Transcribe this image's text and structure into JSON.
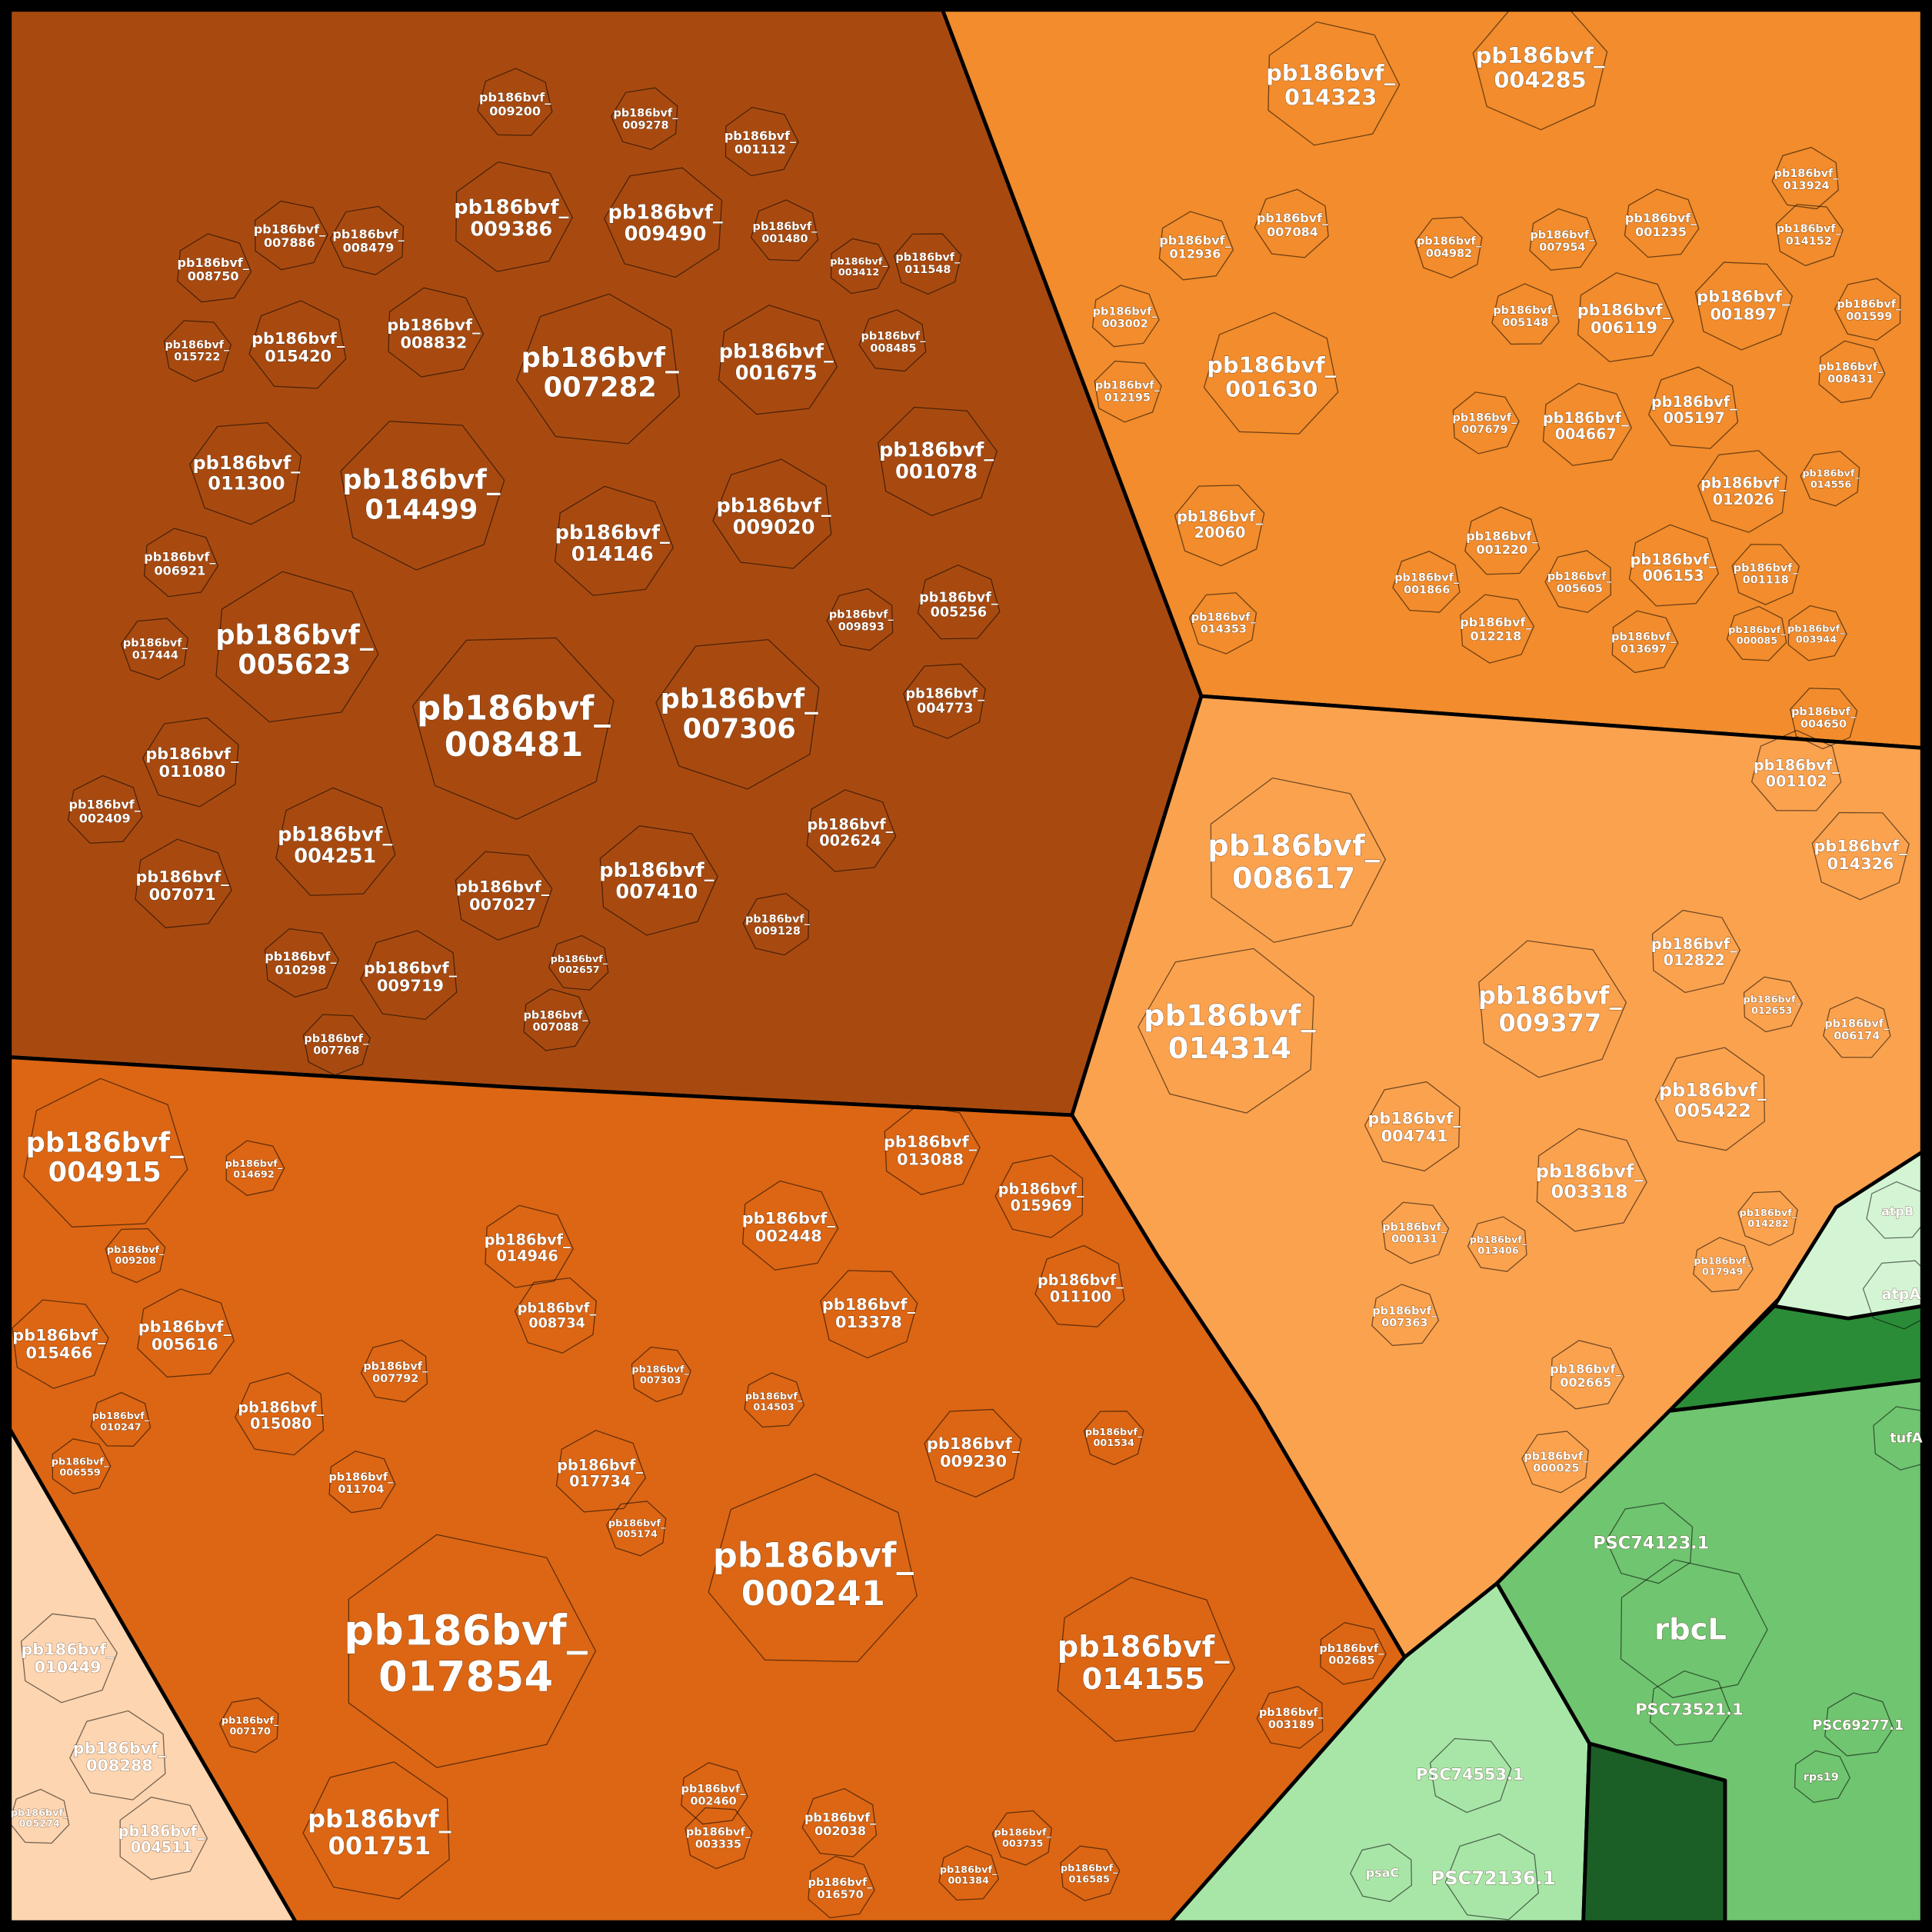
{
  "treemap": {
    "cells": [
      {
        "label": [
          "pb186bvf_",
          "017854"
        ]
      },
      {
        "label": [
          "pb186bvf_",
          "008481"
        ]
      },
      {
        "label": [
          "pb186bvf_",
          "000241"
        ]
      },
      {
        "label": [
          "pb186bvf_",
          "008617"
        ]
      },
      {
        "label": [
          "pb186bvf_",
          "014314"
        ]
      },
      {
        "label": [
          "pb186bvf_",
          "014155"
        ]
      },
      {
        "label": [
          "pb186bvf_",
          "014499"
        ]
      },
      {
        "label": [
          "pb186bvf_",
          "007282"
        ]
      },
      {
        "label": [
          "pb186bvf_",
          "005623"
        ]
      },
      {
        "label": [
          "pb186bvf_",
          "007306"
        ]
      },
      {
        "label": [
          "pb186bvf_",
          "004915"
        ]
      },
      {
        "label": [
          "pb186bvf_",
          "009377"
        ]
      },
      {
        "label": [
          "pb186bvf_",
          "001751"
        ]
      },
      {
        "label": [
          "pb186bvf_",
          "014323"
        ]
      },
      {
        "label": [
          "pb186bvf_",
          "004285"
        ]
      },
      {
        "label": [
          "pb186bvf_",
          "001630"
        ]
      },
      {
        "label": [
          "pb186bvf_",
          "009386"
        ]
      },
      {
        "label": [
          "pb186bvf_",
          "009490"
        ]
      },
      {
        "label": [
          "pb186bvf_",
          "001675"
        ]
      },
      {
        "label": [
          "pb186bvf_",
          "001078"
        ]
      },
      {
        "label": [
          "pb186bvf_",
          "009020"
        ]
      },
      {
        "label": [
          "pb186bvf_",
          "014146"
        ]
      },
      {
        "label": [
          "pb186bvf_",
          "011300"
        ]
      },
      {
        "label": [
          "pb186bvf_",
          "004251"
        ]
      },
      {
        "label": [
          "pb186bvf_",
          "007410"
        ]
      },
      {
        "label": [
          "pb186bvf_",
          "005422"
        ]
      },
      {
        "label": [
          "pb186bvf_",
          "003318"
        ]
      },
      {
        "label": [
          "pb186bvf_",
          "014326"
        ]
      },
      {
        "label": [
          "pb186bvf_",
          "015420"
        ]
      },
      {
        "label": [
          "pb186bvf_",
          "008832"
        ]
      },
      {
        "label": [
          "pb186bvf_",
          "011080"
        ]
      },
      {
        "label": [
          "pb186bvf_",
          "007071"
        ]
      },
      {
        "label": [
          "pb186bvf_",
          "007027"
        ]
      },
      {
        "label": [
          "pb186bvf_",
          "009719"
        ]
      },
      {
        "label": [
          "pb186bvf_",
          "002624"
        ]
      },
      {
        "label": [
          "pb186bvf_",
          "004773"
        ]
      },
      {
        "label": [
          "pb186bvf_",
          "005256"
        ]
      },
      {
        "label": [
          "pb186bvf_",
          "013088"
        ]
      },
      {
        "label": [
          "pb186bvf_",
          "015969"
        ]
      },
      {
        "label": [
          "pb186bvf_",
          "002448"
        ]
      },
      {
        "label": [
          "pb186bvf_",
          "013378"
        ]
      },
      {
        "label": [
          "pb186bvf_",
          "011100"
        ]
      },
      {
        "label": [
          "pb186bvf_",
          "014946"
        ]
      },
      {
        "label": [
          "pb186bvf_",
          "008734"
        ]
      },
      {
        "label": [
          "pb186bvf_",
          "005616"
        ]
      },
      {
        "label": [
          "pb186bvf_",
          "015466"
        ]
      },
      {
        "label": [
          "pb186bvf_",
          "015080"
        ]
      },
      {
        "label": [
          "pb186bvf_",
          "017734"
        ]
      },
      {
        "label": [
          "pb186bvf_",
          "009230"
        ]
      },
      {
        "label": [
          "pb186bvf_",
          "001102"
        ]
      },
      {
        "label": [
          "pb186bvf_",
          "012822"
        ]
      },
      {
        "label": [
          "pb186bvf_",
          "004741"
        ]
      },
      {
        "label": [
          "pb186bvf_",
          "006119"
        ]
      },
      {
        "label": [
          "pb186bvf_",
          "001897"
        ]
      },
      {
        "label": [
          "pb186bvf_",
          "005197"
        ]
      },
      {
        "label": [
          "pb186bvf_",
          "004667"
        ]
      },
      {
        "label": [
          "pb186bvf_",
          "012026"
        ]
      },
      {
        "label": [
          "pb186bvf_",
          "006153"
        ]
      },
      {
        "label": [
          "pb186bvf_",
          "010449"
        ]
      },
      {
        "label": [
          "pb186bvf_",
          "008288"
        ]
      },
      {
        "label": [
          "pb186bvf_",
          "004511"
        ]
      },
      {
        "label": [
          "pb186bvf_",
          "20060"
        ]
      },
      {
        "label": [
          "pb186bvf_",
          "009200"
        ]
      },
      {
        "label": [
          "pb186bvf_",
          "007886"
        ]
      },
      {
        "label": [
          "pb186bvf_",
          "008479"
        ]
      },
      {
        "label": [
          "pb186bvf_",
          "008750"
        ]
      },
      {
        "label": [
          "pb186bvf_",
          "015722"
        ]
      },
      {
        "label": [
          "pb186bvf_",
          "008485"
        ]
      },
      {
        "label": [
          "pb186bvf_",
          "006921"
        ]
      },
      {
        "label": [
          "pb186bvf_",
          "017444"
        ]
      },
      {
        "label": [
          "pb186bvf_",
          "002409"
        ]
      },
      {
        "label": [
          "pb186bvf_",
          "010298"
        ]
      },
      {
        "label": [
          "pb186bvf_",
          "009893"
        ]
      },
      {
        "label": [
          "pb186bvf_",
          "003412"
        ]
      },
      {
        "label": [
          "pb186bvf_",
          "011548"
        ]
      },
      {
        "label": [
          "pb186bvf_",
          "001480"
        ]
      },
      {
        "label": [
          "pb186bvf_",
          "001112"
        ]
      },
      {
        "label": [
          "pb186bvf_",
          "009278"
        ]
      },
      {
        "label": [
          "pb186bvf_",
          "003002"
        ]
      },
      {
        "label": [
          "pb186bvf_",
          "012195"
        ]
      },
      {
        "label": [
          "pb186bvf_",
          "007084"
        ]
      },
      {
        "label": [
          "pb186bvf_",
          "012936"
        ]
      },
      {
        "label": [
          "pb186bvf_",
          "014353"
        ]
      },
      {
        "label": [
          "pb186bvf_",
          "001220"
        ]
      },
      {
        "label": [
          "pb186bvf_",
          "012218"
        ]
      },
      {
        "label": [
          "pb186bvf_",
          "005605"
        ]
      },
      {
        "label": [
          "pb186bvf_",
          "013697"
        ]
      },
      {
        "label": [
          "pb186bvf_",
          "001118"
        ]
      },
      {
        "label": [
          "pb186bvf_",
          "000085"
        ]
      },
      {
        "label": [
          "pb186bvf_",
          "003944"
        ]
      },
      {
        "label": [
          "pb186bvf_",
          "014556"
        ]
      },
      {
        "label": [
          "pb186bvf_",
          "001235"
        ]
      },
      {
        "label": [
          "pb186bvf_",
          "014152"
        ]
      },
      {
        "label": [
          "pb186bvf_",
          "013924"
        ]
      },
      {
        "label": [
          "pb186bvf_",
          "007954"
        ]
      },
      {
        "label": [
          "pb186bvf_",
          "004982"
        ]
      },
      {
        "label": [
          "pb186bvf_",
          "005148"
        ]
      },
      {
        "label": [
          "pb186bvf_",
          "007679"
        ]
      },
      {
        "label": [
          "pb186bvf_",
          "001599"
        ]
      },
      {
        "label": [
          "pb186bvf_",
          "008431"
        ]
      },
      {
        "label": [
          "pb186bvf_",
          "004650"
        ]
      },
      {
        "label": [
          "pb186bvf_",
          "001866"
        ]
      },
      {
        "label": [
          "pb186bvf_",
          "002665"
        ]
      },
      {
        "label": [
          "pb186bvf_",
          "000025"
        ]
      },
      {
        "label": [
          "pb186bvf_",
          "007363"
        ]
      },
      {
        "label": [
          "pb186bvf_",
          "000131"
        ]
      },
      {
        "label": [
          "pb186bvf_",
          "013406"
        ]
      },
      {
        "label": [
          "pb186bvf_",
          "017949"
        ]
      },
      {
        "label": [
          "pb186bvf_",
          "014282"
        ]
      },
      {
        "label": [
          "pb186bvf_",
          "006174"
        ]
      },
      {
        "label": [
          "pb186bvf_",
          "012653"
        ]
      },
      {
        "label": [
          "pb186bvf_",
          "009128"
        ]
      },
      {
        "label": [
          "pb186bvf_",
          "007088"
        ]
      },
      {
        "label": [
          "pb186bvf_",
          "007768"
        ]
      },
      {
        "label": [
          "pb186bvf_",
          "002657"
        ]
      },
      {
        "label": [
          "pb186bvf_",
          "011704"
        ]
      },
      {
        "label": [
          "pb186bvf_",
          "005174"
        ]
      },
      {
        "label": [
          "pb186bvf_",
          "014503"
        ]
      },
      {
        "label": [
          "pb186bvf_",
          "007303"
        ]
      },
      {
        "label": [
          "pb186bvf_",
          "007792"
        ]
      },
      {
        "label": [
          "pb186bvf_",
          "014692"
        ]
      },
      {
        "label": [
          "pb186bvf_",
          "009208"
        ]
      },
      {
        "label": [
          "pb186bvf_",
          "010247"
        ]
      },
      {
        "label": [
          "pb186bvf_",
          "006559"
        ]
      },
      {
        "label": [
          "pb186bvf_",
          "007170"
        ]
      },
      {
        "label": [
          "pb186bvf_",
          "002460"
        ]
      },
      {
        "label": [
          "pb186bvf_",
          "003335"
        ]
      },
      {
        "label": [
          "pb186bvf_",
          "002038"
        ]
      },
      {
        "label": [
          "pb186bvf_",
          "016570"
        ]
      },
      {
        "label": [
          "pb186bvf_",
          "003735"
        ]
      },
      {
        "label": [
          "pb186bvf_",
          "001384"
        ]
      },
      {
        "label": [
          "pb186bvf_",
          "016585"
        ]
      },
      {
        "label": [
          "pb186bvf_",
          "003189"
        ]
      },
      {
        "label": [
          "pb186bvf_",
          "002685"
        ]
      },
      {
        "label": [
          "pb186bvf_",
          "001534"
        ]
      },
      {
        "label": [
          "pb186bvf_",
          "005274"
        ]
      },
      {
        "label": [
          "rbcL"
        ]
      },
      {
        "label": [
          "PSC74123.1"
        ]
      },
      {
        "label": [
          "PSC73521.1"
        ]
      },
      {
        "label": [
          "PSC74553.1"
        ]
      },
      {
        "label": [
          "PSC72136.1"
        ]
      },
      {
        "label": [
          "PSC69277.1"
        ]
      },
      {
        "label": [
          "atpA"
        ]
      },
      {
        "label": [
          "atpB"
        ]
      },
      {
        "label": [
          "tufA"
        ]
      },
      {
        "label": [
          "psaC"
        ]
      },
      {
        "label": [
          "rps19"
        ]
      }
    ]
  }
}
